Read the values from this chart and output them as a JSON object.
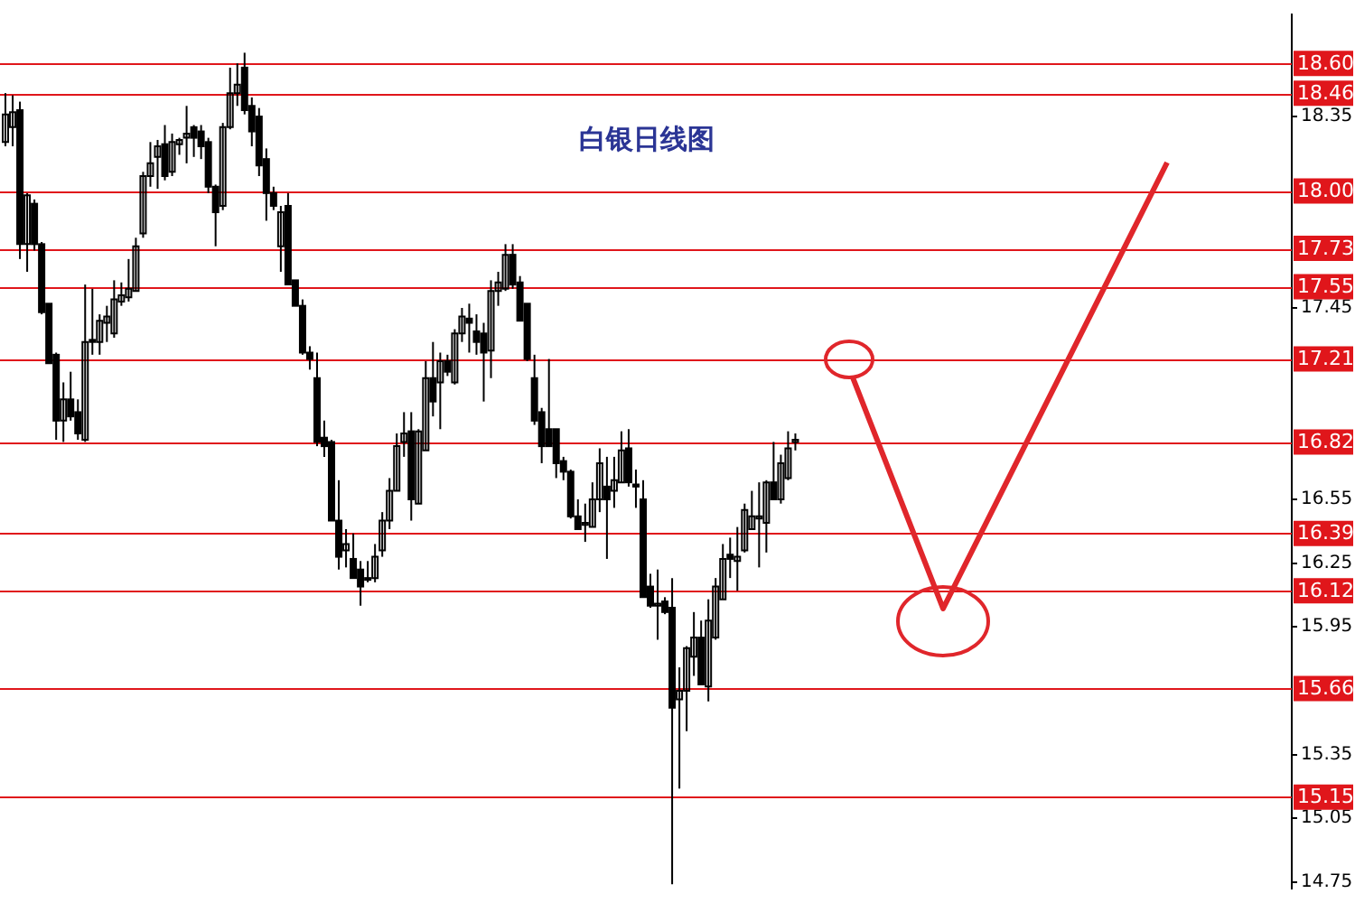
{
  "chart_data": {
    "type": "candlestick",
    "title": "白银日线图",
    "color": "#000000",
    "categories": [
      null,
      null,
      null,
      null,
      null,
      null,
      null,
      null,
      null,
      null,
      null,
      null,
      null,
      null,
      null,
      null,
      null,
      null,
      null,
      null,
      null,
      null,
      null,
      null,
      null,
      null,
      null,
      null,
      null,
      null,
      null,
      null,
      null,
      null,
      null,
      null,
      null,
      null,
      null,
      null,
      null,
      null,
      null,
      null,
      null,
      null,
      null,
      null,
      null,
      null,
      null,
      null,
      null,
      null,
      null,
      null,
      null,
      null,
      null,
      null,
      null,
      null,
      null,
      null,
      null,
      null,
      null,
      null,
      null,
      null,
      null,
      null,
      null,
      null,
      null,
      null,
      null,
      null,
      null,
      null,
      null,
      null,
      null,
      null,
      null,
      null,
      null,
      null,
      null,
      null,
      null,
      null,
      null,
      null,
      null,
      null,
      null,
      null,
      null,
      null,
      null,
      null,
      null,
      null,
      null,
      null,
      null,
      null,
      null,
      null,
      null,
      null,
      null,
      null,
      null,
      null,
      null,
      null,
      null,
      null,
      null,
      null,
      null,
      null,
      null,
      null,
      null,
      null,
      null,
      null,
      null,
      null,
      null,
      null,
      null,
      null,
      null,
      null,
      null,
      null,
      null,
      null,
      null,
      null,
      null,
      null,
      null,
      null,
      null,
      null,
      null,
      null,
      null,
      null,
      null,
      null,
      null,
      null,
      null,
      null,
      null,
      null,
      null,
      null,
      null,
      null,
      null,
      null,
      null,
      null,
      null,
      null,
      null,
      null,
      null,
      null,
      null,
      null
    ],
    "ohlc": [
      [
        18.23,
        18.46,
        18.21,
        18.36
      ],
      [
        18.3,
        18.45,
        18.21,
        18.37
      ],
      [
        18.38,
        18.42,
        17.68,
        17.75
      ],
      [
        17.75,
        17.99,
        17.62,
        17.98
      ],
      [
        17.94,
        17.96,
        17.72,
        17.75
      ],
      [
        17.75,
        17.76,
        17.42,
        17.43
      ],
      [
        17.47,
        17.47,
        17.19,
        17.19
      ],
      [
        17.23,
        17.24,
        16.83,
        16.92
      ],
      [
        16.92,
        17.1,
        16.82,
        17.02
      ],
      [
        17.02,
        17.15,
        16.92,
        16.94
      ],
      [
        16.96,
        17.02,
        16.83,
        16.86
      ],
      [
        16.83,
        17.56,
        16.82,
        17.29
      ],
      [
        17.3,
        17.54,
        17.23,
        17.29
      ],
      [
        17.29,
        17.42,
        17.23,
        17.39
      ],
      [
        17.38,
        17.46,
        17.29,
        17.41
      ],
      [
        17.33,
        17.58,
        17.31,
        17.49
      ],
      [
        17.48,
        17.57,
        17.46,
        17.51
      ],
      [
        17.5,
        17.68,
        17.48,
        17.54
      ],
      [
        17.53,
        17.78,
        17.53,
        17.74
      ],
      [
        17.8,
        18.09,
        17.78,
        18.07
      ],
      [
        18.07,
        18.23,
        18.02,
        18.13
      ],
      [
        18.16,
        18.24,
        18.01,
        18.21
      ],
      [
        18.22,
        18.31,
        18.05,
        18.07
      ],
      [
        18.09,
        18.27,
        18.07,
        18.23
      ],
      [
        18.22,
        18.25,
        18.17,
        18.24
      ],
      [
        18.25,
        18.4,
        18.13,
        18.27
      ],
      [
        18.3,
        18.31,
        18.16,
        18.25
      ],
      [
        18.28,
        18.31,
        18.15,
        18.21
      ],
      [
        18.23,
        18.25,
        17.99,
        18.02
      ],
      [
        18.02,
        18.03,
        17.74,
        17.9
      ],
      [
        17.93,
        18.32,
        17.91,
        18.3
      ],
      [
        18.3,
        18.58,
        18.29,
        18.46
      ],
      [
        18.46,
        18.6,
        18.4,
        18.5
      ],
      [
        18.58,
        18.65,
        18.36,
        18.38
      ],
      [
        18.4,
        18.44,
        18.21,
        18.28
      ],
      [
        18.35,
        18.39,
        18.07,
        18.12
      ],
      [
        18.15,
        18.2,
        17.86,
        17.99
      ],
      [
        17.99,
        18.02,
        17.91,
        17.93
      ],
      [
        17.74,
        17.93,
        17.62,
        17.9
      ],
      [
        17.93,
        17.99,
        17.56,
        17.56
      ],
      [
        17.58,
        17.58,
        17.46,
        17.46
      ],
      [
        17.46,
        17.49,
        17.23,
        17.24
      ],
      [
        17.24,
        17.27,
        17.16,
        17.21
      ],
      [
        17.12,
        17.24,
        16.8,
        16.82
      ],
      [
        16.84,
        16.92,
        16.75,
        16.8
      ],
      [
        16.82,
        16.83,
        16.45,
        16.45
      ],
      [
        16.45,
        16.64,
        16.22,
        16.28
      ],
      [
        16.31,
        16.41,
        16.23,
        16.34
      ],
      [
        16.27,
        16.39,
        16.18,
        16.18
      ],
      [
        16.22,
        16.26,
        16.05,
        16.14
      ],
      [
        16.18,
        16.26,
        16.16,
        16.18
      ],
      [
        16.18,
        16.34,
        16.16,
        16.28
      ],
      [
        16.31,
        16.49,
        16.28,
        16.45
      ],
      [
        16.45,
        16.65,
        16.41,
        16.59
      ],
      [
        16.59,
        16.86,
        16.59,
        16.8
      ],
      [
        16.82,
        16.96,
        16.75,
        16.86
      ],
      [
        16.87,
        16.96,
        16.45,
        16.55
      ],
      [
        16.53,
        16.88,
        16.53,
        16.87
      ],
      [
        16.78,
        17.2,
        16.78,
        17.12
      ],
      [
        17.12,
        17.29,
        16.94,
        17.01
      ],
      [
        17.1,
        17.24,
        16.88,
        17.2
      ],
      [
        17.2,
        17.23,
        17.13,
        17.15
      ],
      [
        17.1,
        17.35,
        17.09,
        17.33
      ],
      [
        17.33,
        17.45,
        17.29,
        17.41
      ],
      [
        17.4,
        17.47,
        17.24,
        17.38
      ],
      [
        17.34,
        17.42,
        17.23,
        17.29
      ],
      [
        17.33,
        17.38,
        17.01,
        17.24
      ],
      [
        17.25,
        17.58,
        17.12,
        17.53
      ],
      [
        17.53,
        17.62,
        17.46,
        17.57
      ],
      [
        17.54,
        17.75,
        17.53,
        17.7
      ],
      [
        17.7,
        17.75,
        17.54,
        17.56
      ],
      [
        17.57,
        17.6,
        17.39,
        17.39
      ],
      [
        17.47,
        17.47,
        17.2,
        17.21
      ],
      [
        17.12,
        17.23,
        16.9,
        16.92
      ],
      [
        16.96,
        16.98,
        16.72,
        16.8
      ],
      [
        16.88,
        17.21,
        16.8,
        16.8
      ],
      [
        16.88,
        16.88,
        16.65,
        16.72
      ],
      [
        16.73,
        16.75,
        16.64,
        16.68
      ],
      [
        16.68,
        16.69,
        16.46,
        16.47
      ],
      [
        16.47,
        16.55,
        16.41,
        16.41
      ],
      [
        16.43,
        16.53,
        16.35,
        16.44
      ],
      [
        16.42,
        16.63,
        16.42,
        16.55
      ],
      [
        16.55,
        16.79,
        16.49,
        16.72
      ],
      [
        16.61,
        16.75,
        16.27,
        16.55
      ],
      [
        16.59,
        16.75,
        16.51,
        16.64
      ],
      [
        16.63,
        16.87,
        16.63,
        16.78
      ],
      [
        16.79,
        16.88,
        16.61,
        16.63
      ],
      [
        16.62,
        16.69,
        16.51,
        16.61
      ],
      [
        16.55,
        16.64,
        16.09,
        16.09
      ],
      [
        16.14,
        16.2,
        16.04,
        16.05
      ],
      [
        16.05,
        16.22,
        15.89,
        16.06
      ],
      [
        16.07,
        16.09,
        16.01,
        16.02
      ],
      [
        16.04,
        16.18,
        14.74,
        15.57
      ],
      [
        15.61,
        15.76,
        15.19,
        15.65
      ],
      [
        15.65,
        15.86,
        15.46,
        15.85
      ],
      [
        15.81,
        16.02,
        15.72,
        15.9
      ],
      [
        15.9,
        15.98,
        15.68,
        15.68
      ],
      [
        15.67,
        16.08,
        15.6,
        15.98
      ],
      [
        15.9,
        16.18,
        15.89,
        16.14
      ],
      [
        16.08,
        16.34,
        16.08,
        16.27
      ],
      [
        16.29,
        16.37,
        16.18,
        16.27
      ],
      [
        16.26,
        16.42,
        16.12,
        16.28
      ],
      [
        16.31,
        16.53,
        16.3,
        16.5
      ],
      [
        16.41,
        16.59,
        16.41,
        16.47
      ],
      [
        16.46,
        16.63,
        16.23,
        16.47
      ],
      [
        16.44,
        16.64,
        16.3,
        16.63
      ],
      [
        16.63,
        16.82,
        16.55,
        16.55
      ],
      [
        16.55,
        16.76,
        16.53,
        16.72
      ],
      [
        16.65,
        16.87,
        16.64,
        16.79
      ],
      [
        16.82,
        16.86,
        16.78,
        16.83
      ],
      null,
      null,
      null,
      null,
      null,
      null,
      null,
      null,
      null,
      null,
      null,
      null,
      null,
      null,
      null,
      null,
      null,
      null,
      null,
      null,
      null,
      null,
      null,
      null,
      null,
      null,
      null,
      null,
      null,
      null,
      null,
      null,
      null,
      null,
      null,
      null,
      null,
      null,
      null,
      null,
      null,
      null,
      null,
      null,
      null,
      null,
      null,
      null,
      null,
      null,
      null,
      null,
      null,
      null,
      null,
      null,
      null,
      null,
      null,
      null,
      null,
      null,
      null,
      null,
      null,
      null,
      null,
      null
    ],
    "ylim": [
      14.72,
      18.83
    ],
    "yticks": [
      18.35,
      17.45,
      16.55,
      16.25,
      15.95,
      15.35,
      15.05,
      14.75
    ],
    "tick_labels": "y",
    "grid": false,
    "legend": false,
    "ref_lines": [
      {
        "axis": "y",
        "value": 18.6,
        "label": "18.60",
        "color": "#e0161b"
      },
      {
        "axis": "y",
        "value": 18.46,
        "label": "18.46",
        "color": "#e0161b"
      },
      {
        "axis": "y",
        "value": 18.0,
        "label": "18.00",
        "color": "#e0161b"
      },
      {
        "axis": "y",
        "value": 17.73,
        "label": "17.73",
        "color": "#e0161b"
      },
      {
        "axis": "y",
        "value": 17.55,
        "label": "17.55",
        "color": "#e0161b"
      },
      {
        "axis": "y",
        "value": 17.21,
        "label": "17.21",
        "color": "#e0161b"
      },
      {
        "axis": "y",
        "value": 16.82,
        "label": "16.82",
        "color": "#e0161b"
      },
      {
        "axis": "y",
        "value": 16.39,
        "label": "16.39",
        "color": "#e0161b"
      },
      {
        "axis": "y",
        "value": 16.12,
        "label": "16.12",
        "color": "#e0161b"
      },
      {
        "axis": "y",
        "value": 15.66,
        "label": "15.66",
        "color": "#e0161b"
      },
      {
        "axis": "y",
        "value": 15.15,
        "label": "15.15",
        "color": "#e0161b"
      }
    ]
  }
}
